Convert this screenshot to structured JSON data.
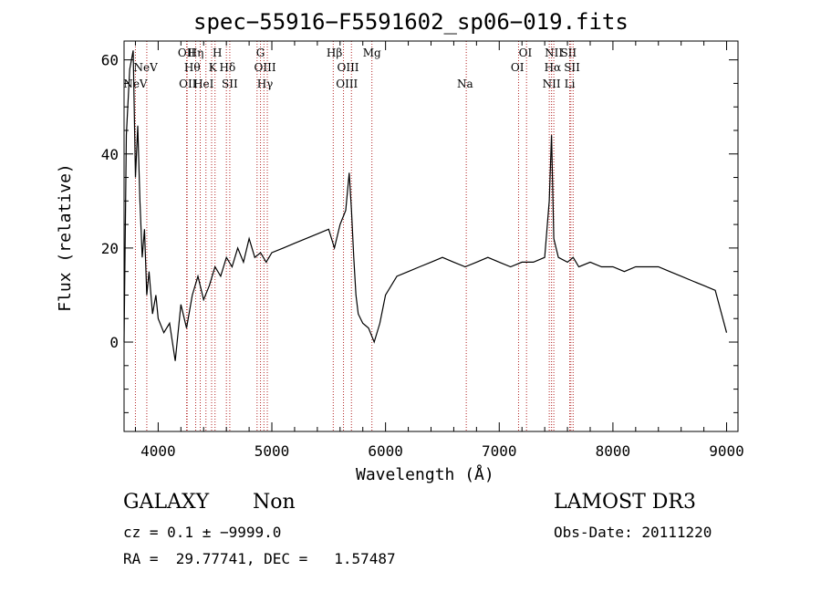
{
  "chart_data": {
    "type": "line",
    "title": "spec−55916−F5591602_sp06−019.fits",
    "xlabel": "Wavelength (Å)",
    "ylabel": "Flux (relative)",
    "xlim": [
      3700,
      9100
    ],
    "ylim": [
      -19,
      64
    ],
    "x_ticks": [
      4000,
      5000,
      6000,
      7000,
      8000,
      9000
    ],
    "y_ticks": [
      0,
      20,
      40,
      60
    ],
    "grid": false,
    "legend": "none",
    "colors": {
      "spectrum": "#000000",
      "lines": "#b22222"
    },
    "series": [
      {
        "x": [
          3700,
          3720,
          3750,
          3780,
          3800,
          3820,
          3840,
          3860,
          3880,
          3900,
          3920,
          3950,
          3980,
          4000,
          4050,
          4100,
          4150,
          4200,
          4250,
          4300,
          4350,
          4400,
          4450,
          4500,
          4550,
          4600,
          4650,
          4700,
          4750,
          4800,
          4850,
          4900,
          4950,
          5000,
          5100,
          5200,
          5300,
          5400,
          5500,
          5550,
          5600,
          5650,
          5680,
          5700,
          5720,
          5740,
          5760,
          5800,
          5850,
          5900,
          5950,
          6000,
          6100,
          6200,
          6300,
          6400,
          6500,
          6600,
          6700,
          6800,
          6900,
          7000,
          7100,
          7200,
          7300,
          7400,
          7440,
          7460,
          7480,
          7520,
          7600,
          7650,
          7700,
          7800,
          7900,
          8000,
          8100,
          8200,
          8300,
          8400,
          8500,
          8600,
          8700,
          8800,
          8900,
          9000
        ],
        "y": [
          0,
          44,
          58,
          62,
          35,
          46,
          30,
          18,
          24,
          10,
          15,
          6,
          10,
          5,
          2,
          4,
          -4,
          8,
          3,
          10,
          14,
          9,
          12,
          16,
          14,
          18,
          16,
          20,
          17,
          22,
          18,
          19,
          17,
          19,
          20,
          21,
          22,
          23,
          24,
          20,
          25,
          28,
          36,
          28,
          18,
          10,
          6,
          4,
          3,
          0,
          4,
          10,
          14,
          15,
          16,
          17,
          18,
          17,
          16,
          17,
          18,
          17,
          16,
          17,
          17,
          18,
          30,
          44,
          22,
          18,
          17,
          18,
          16,
          17,
          16,
          16,
          15,
          16,
          16,
          16,
          15,
          14,
          13,
          12,
          11,
          2
        ]
      }
    ],
    "annotations": [
      {
        "label": "NeV",
        "x": 3800,
        "row": 2
      },
      {
        "label": "NeV",
        "x": 3890,
        "row": 1
      },
      {
        "label": "OII",
        "x": 4250,
        "row": 0
      },
      {
        "label": "OII",
        "x": 4260,
        "row": 2
      },
      {
        "label": "Hη",
        "x": 4330,
        "row": 0
      },
      {
        "label": "Hθ",
        "x": 4300,
        "row": 1
      },
      {
        "label": "HeI",
        "x": 4400,
        "row": 2
      },
      {
        "label": "H",
        "x": 4520,
        "row": 0
      },
      {
        "label": "K",
        "x": 4480,
        "row": 1
      },
      {
        "label": "Hδ",
        "x": 4610,
        "row": 1
      },
      {
        "label": "SII",
        "x": 4630,
        "row": 2
      },
      {
        "label": "G",
        "x": 4900,
        "row": 0
      },
      {
        "label": "OIII",
        "x": 4940,
        "row": 1
      },
      {
        "label": "Hγ",
        "x": 4940,
        "row": 2
      },
      {
        "label": "Hβ",
        "x": 5550,
        "row": 0
      },
      {
        "label": "OIII",
        "x": 5670,
        "row": 1
      },
      {
        "label": "OIII",
        "x": 5660,
        "row": 2
      },
      {
        "label": "Mg",
        "x": 5880,
        "row": 0
      },
      {
        "label": "Na",
        "x": 6700,
        "row": 2
      },
      {
        "label": "OI",
        "x": 7230,
        "row": 0
      },
      {
        "label": "OI",
        "x": 7160,
        "row": 1
      },
      {
        "label": "NII",
        "x": 7480,
        "row": 0
      },
      {
        "label": "SII",
        "x": 7610,
        "row": 0
      },
      {
        "label": "Hα",
        "x": 7470,
        "row": 1
      },
      {
        "label": "SII",
        "x": 7640,
        "row": 1
      },
      {
        "label": "NII",
        "x": 7460,
        "row": 2
      },
      {
        "label": "Li",
        "x": 7620,
        "row": 2
      }
    ],
    "line_positions": [
      3800,
      3900,
      4250,
      4255,
      4330,
      4370,
      4420,
      4470,
      4500,
      4600,
      4630,
      4870,
      4900,
      4930,
      4960,
      5540,
      5630,
      5700,
      5880,
      6710,
      7170,
      7240,
      7440,
      7460,
      7480,
      7620,
      7630,
      7650
    ]
  },
  "info": {
    "object_class": "GALAXY",
    "subclass": "Non",
    "survey": "LAMOST DR3",
    "cz_line": "cz = 0.1 ± −9999.0",
    "obs_date_line": "Obs-Date: 20111220",
    "radec_line": "RA =  29.77741, DEC =   1.57487"
  }
}
